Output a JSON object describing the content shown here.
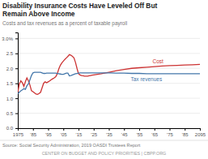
{
  "chart_data": {
    "type": "line",
    "title": [
      "Disability Insurance Costs Have Leveled Off But",
      "Remain Above Income"
    ],
    "subtitle": "Costs and tax revenues as a percent of taxable payroll",
    "annotations": [
      "Source: Social Security Administration, 2019 OASDI Trustees Report",
      "CENTER ON BUDGET AND POLICY PRIORITIES | CBPP.ORG"
    ],
    "x": [
      1975,
      1976,
      1977,
      1978,
      1979,
      1980,
      1981,
      1982,
      1983,
      1984,
      1985,
      1986,
      1987,
      1988,
      1989,
      1990,
      1991,
      1992,
      1993,
      1994,
      1995,
      1996,
      1997,
      1998,
      1999,
      2000,
      2001,
      2002,
      2003,
      2004,
      2005,
      2006,
      2007,
      2008,
      2009,
      2010,
      2011,
      2012,
      2013,
      2014,
      2015,
      2016,
      2017,
      2018,
      2019,
      2020,
      2021,
      2022,
      2023,
      2024,
      2025,
      2030,
      2035,
      2040,
      2045,
      2050,
      2055,
      2060,
      2065,
      2070,
      2075,
      2080,
      2085,
      2090,
      2095
    ],
    "series": [
      {
        "name": "Cost",
        "color": "#cc3333",
        "values": [
          1.2,
          1.48,
          1.58,
          1.52,
          1.4,
          1.55,
          1.68,
          1.58,
          1.44,
          1.25,
          1.22,
          1.18,
          1.14,
          1.13,
          1.16,
          1.2,
          1.35,
          1.5,
          1.55,
          1.52,
          1.55,
          1.58,
          1.62,
          1.65,
          1.68,
          1.72,
          1.82,
          1.98,
          2.1,
          2.18,
          2.24,
          2.3,
          2.35,
          2.4,
          2.46,
          2.44,
          2.4,
          2.35,
          2.2,
          2.0,
          1.82,
          1.78,
          1.76,
          1.75,
          1.74,
          1.74,
          1.74,
          1.75,
          1.76,
          1.77,
          1.78,
          1.82,
          1.87,
          1.92,
          1.96,
          2.0,
          2.02,
          2.04,
          2.06,
          2.08,
          2.09,
          2.1,
          2.11,
          2.12,
          2.13
        ]
      },
      {
        "name": "Tax revenues",
        "color": "#4477aa",
        "values": [
          1.15,
          1.2,
          1.25,
          1.28,
          1.32,
          1.3,
          1.42,
          1.48,
          1.62,
          1.76,
          1.85,
          1.87,
          1.87,
          1.87,
          1.87,
          1.87,
          1.85,
          1.83,
          1.83,
          1.84,
          1.84,
          1.84,
          1.84,
          1.84,
          1.84,
          1.84,
          1.83,
          1.82,
          1.81,
          1.8,
          1.8,
          1.82,
          1.84,
          1.84,
          1.75,
          1.76,
          1.78,
          1.8,
          1.82,
          1.83,
          1.84,
          1.85,
          1.85,
          1.85,
          1.85,
          1.85,
          1.85,
          1.85,
          1.85,
          1.85,
          1.85,
          1.85,
          1.85,
          1.84,
          1.84,
          1.83,
          1.83,
          1.82,
          1.82,
          1.82,
          1.82,
          1.82,
          1.82,
          1.82,
          1.82
        ]
      }
    ],
    "xlim": [
      1975,
      2095
    ],
    "xticks": [
      1975,
      {
        "value": 1985,
        "label": "'85"
      },
      {
        "value": 1995,
        "label": "'95"
      },
      {
        "value": 2005,
        "label": "'05"
      },
      {
        "value": 2015,
        "label": "'15"
      },
      {
        "value": 2025,
        "label": "'25"
      },
      {
        "value": 2035,
        "label": "'35"
      },
      {
        "value": 2045,
        "label": "'45"
      },
      {
        "value": 2055,
        "label": "'55"
      },
      {
        "value": 2065,
        "label": "'65"
      },
      {
        "value": 2075,
        "label": "'75"
      },
      {
        "value": 2085,
        "label": "'85"
      },
      2095
    ],
    "ylim": [
      0.0,
      3.2
    ],
    "yticks": [
      {
        "value": 0.0,
        "label": "0.0"
      },
      0.5,
      {
        "value": 1.0,
        "label": "1.0"
      },
      1.5,
      {
        "value": 2.0,
        "label": "2.0"
      },
      2.5,
      {
        "value": 3.0,
        "label": "3.0%"
      }
    ],
    "grid": true
  }
}
